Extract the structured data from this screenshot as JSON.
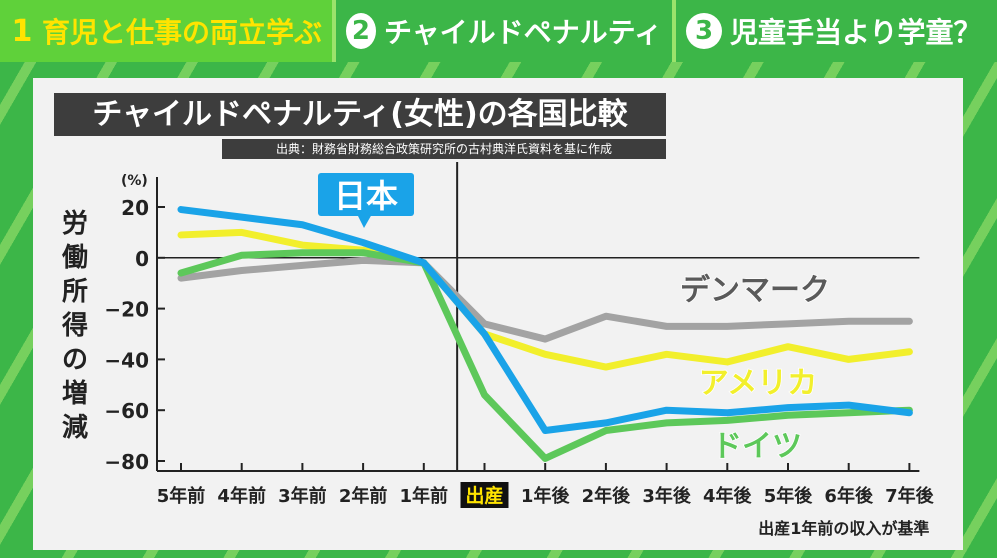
{
  "tabs": [
    {
      "num": "1",
      "label": "育児と仕事の両立学ぶ"
    },
    {
      "num": "2",
      "label": "チャイルドペナルティ"
    },
    {
      "num": "3",
      "label": "児童手当より学童？"
    }
  ],
  "chart_data": {
    "type": "line",
    "title": "チャイルドペナルティ(女性)の各国比較",
    "source": "出典：財務省財務総合政策研究所の古村典洋氏資料を基に作成",
    "ylabel": "労働所得の増減",
    "yunit": "(%)",
    "ylim": [
      -80,
      20
    ],
    "yticks": [
      20,
      0,
      -20,
      -40,
      -60,
      -80
    ],
    "ytick_labels": [
      "20",
      "0",
      "−20",
      "−40",
      "−60",
      "−80"
    ],
    "categories": [
      "5年前",
      "4年前",
      "3年前",
      "2年前",
      "1年前",
      "出産",
      "1年後",
      "2年後",
      "3年後",
      "4年後",
      "5年後",
      "6年後",
      "7年後"
    ],
    "highlight_category": "出産",
    "footnote": "出産1年前の収入が基準",
    "colors": {
      "japan": "#1aa3e8",
      "usa": "#f2ef2c",
      "germany": "#5dc85a",
      "denmark": "#a3a3a3"
    },
    "series": [
      {
        "name": "デンマーク",
        "key": "denmark",
        "values": [
          -8,
          -5,
          -3,
          -1,
          -2,
          -26,
          -32,
          -23,
          -27,
          -27,
          -26,
          -25,
          -25
        ]
      },
      {
        "name": "アメリカ",
        "key": "usa",
        "values": [
          9,
          10,
          5,
          3,
          -2,
          -30,
          -38,
          -43,
          -38,
          -41,
          -35,
          -40,
          -37
        ]
      },
      {
        "name": "ドイツ",
        "key": "germany",
        "values": [
          -6,
          1,
          2,
          2,
          -2,
          -54,
          -79,
          -68,
          -65,
          -64,
          -62,
          -61,
          -60
        ]
      },
      {
        "name": "日本",
        "key": "japan",
        "values": [
          19,
          16,
          13,
          6,
          -2,
          -30,
          -68,
          -65,
          -60,
          -61,
          -59,
          -58,
          -61
        ]
      }
    ]
  }
}
